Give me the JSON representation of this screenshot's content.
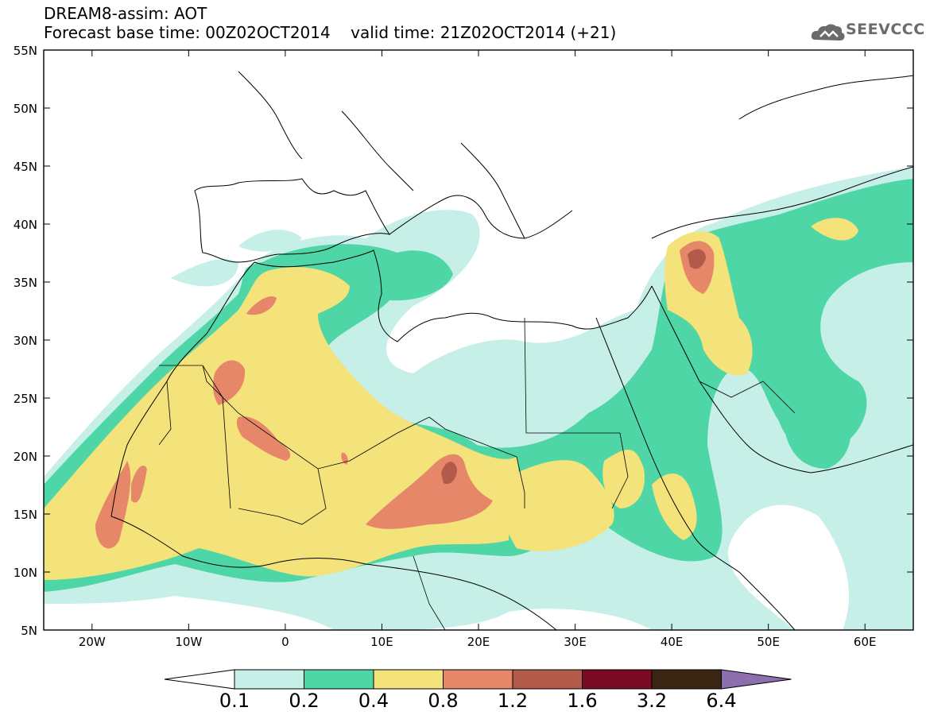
{
  "header": {
    "title_line1": "DREAM8-assim: AOT",
    "title_line2": "Forecast base time: 00Z02OCT2014    valid time: 21Z02OCT2014 (+21)",
    "logo_text": "SEEVCCC"
  },
  "map": {
    "lat_labels": [
      "55N",
      "50N",
      "45N",
      "40N",
      "35N",
      "30N",
      "25N",
      "20N",
      "15N",
      "10N",
      "5N"
    ],
    "lon_labels": [
      "20W",
      "10W",
      "0",
      "10E",
      "20E",
      "30E",
      "40E",
      "50E",
      "60E"
    ],
    "extent": {
      "lon_min": -25,
      "lon_max": 65,
      "lat_min": 5,
      "lat_max": 55
    }
  },
  "colorbar": {
    "labels": [
      "0.1",
      "0.2",
      "0.4",
      "0.8",
      "1.2",
      "1.6",
      "3.2",
      "6.4"
    ],
    "colors": [
      "#c6efe8",
      "#4fd6a6",
      "#f4e27a",
      "#e7876a",
      "#b45a4b",
      "#7a0a24",
      "#3a2412",
      "#8d6fb0"
    ]
  },
  "colors": {
    "level1": "#c6efe8",
    "level2": "#4fd6a6",
    "level3": "#f4e27a",
    "level4": "#e7876a",
    "level5": "#b45a4b",
    "border": "#000000",
    "logo": "#6b6b6b"
  }
}
